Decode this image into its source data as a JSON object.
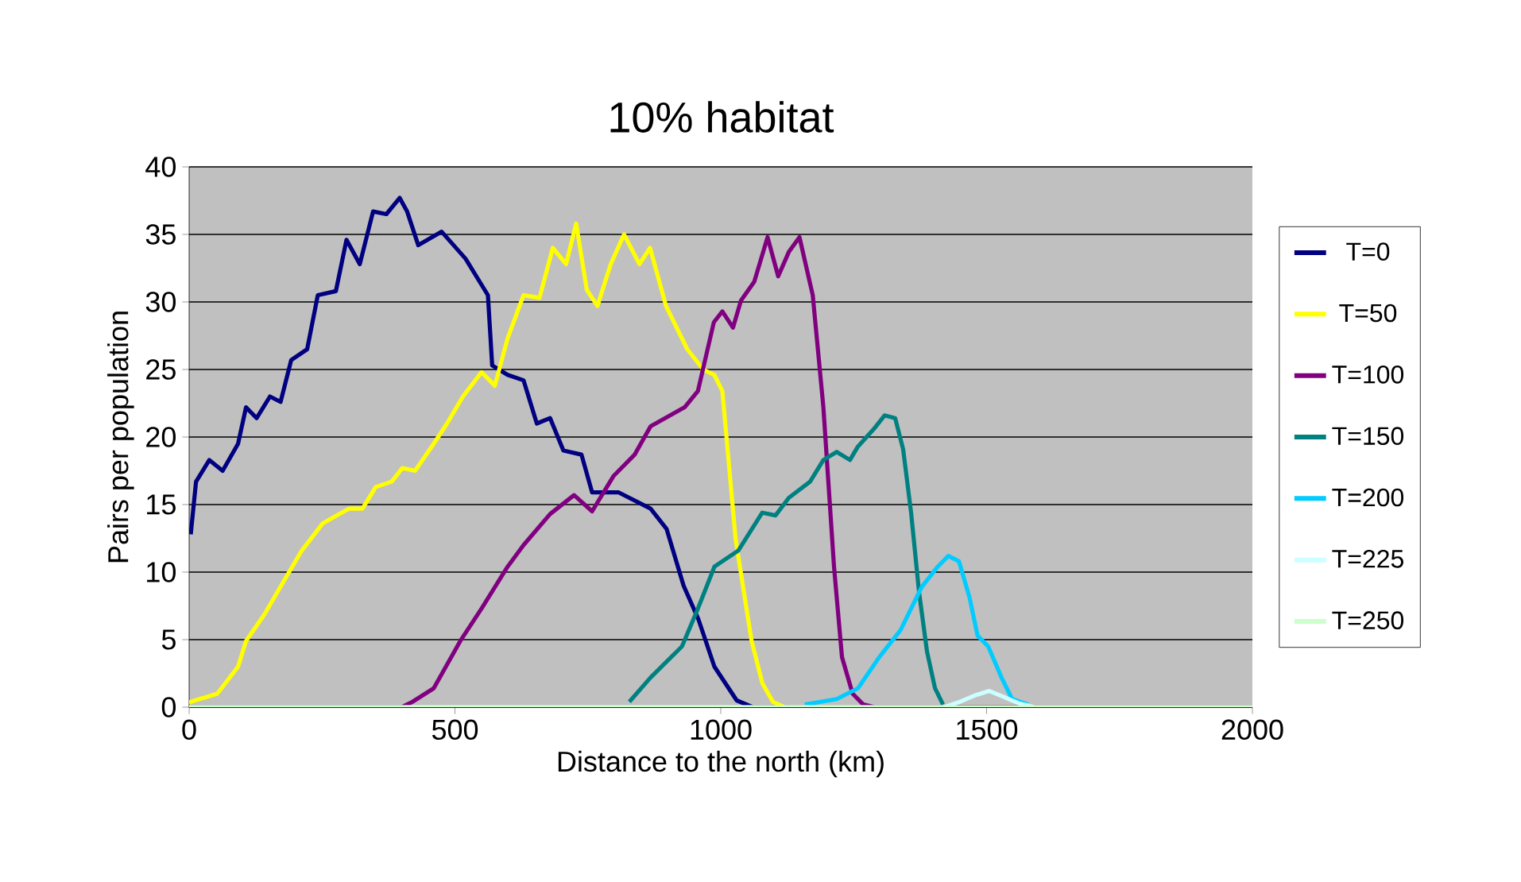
{
  "chart_data": {
    "type": "line",
    "title": "10% habitat",
    "xlabel": "Distance to the north (km)",
    "ylabel": "Pairs per population",
    "xlim": [
      0,
      2000
    ],
    "xticks": [
      0,
      500,
      1000,
      1500,
      2000
    ],
    "ylim": [
      0,
      40
    ],
    "yticks": [
      0,
      5,
      10,
      15,
      20,
      25,
      30,
      35,
      40
    ],
    "grid": "y",
    "legend": "right",
    "marker": "none",
    "line_style": "solid",
    "series": [
      {
        "name": "T=0",
        "color": "#000080",
        "x": [
          3,
          13,
          38,
          63,
          92,
          107,
          127,
          152,
          172,
          192,
          222,
          242,
          276,
          296,
          321,
          346,
          371,
          396,
          410,
          431,
          475,
          520,
          562,
          570,
          599,
          629,
          654,
          679,
          704,
          738,
          758,
          808,
          868,
          898,
          930,
          958,
          988,
          1030,
          1060,
          2000
        ],
        "values": [
          12.8,
          16.7,
          18.3,
          17.5,
          19.5,
          22.2,
          21.4,
          23,
          22.6,
          25.7,
          26.5,
          30.5,
          30.8,
          34.6,
          32.8,
          36.7,
          36.5,
          37.7,
          36.7,
          34.2,
          35.2,
          33.2,
          30.5,
          25.3,
          24.6,
          24.2,
          21,
          21.4,
          19,
          18.7,
          15.9,
          15.9,
          14.7,
          13.2,
          9,
          6.5,
          3,
          0.5,
          0,
          0
        ]
      },
      {
        "name": "T=50",
        "color": "#ffff00",
        "x": [
          0,
          3,
          53,
          92,
          107,
          142,
          182,
          212,
          251,
          301,
          326,
          351,
          381,
          401,
          425,
          460,
          485,
          515,
          550,
          575,
          599,
          629,
          659,
          684,
          709,
          728,
          748,
          768,
          793,
          818,
          847,
          867,
          897,
          937,
          967,
          988,
          1003,
          1028,
          1058,
          1078,
          1098,
          1120,
          2000
        ],
        "values": [
          0.3,
          0.4,
          1,
          3,
          4.9,
          6.9,
          9.6,
          11.6,
          13.6,
          14.7,
          14.7,
          16.3,
          16.7,
          17.7,
          17.5,
          19.5,
          21,
          23,
          24.8,
          23.8,
          27.3,
          30.5,
          30.3,
          34,
          32.8,
          35.8,
          30.9,
          29.7,
          32.8,
          35,
          32.8,
          34,
          29.7,
          26.5,
          25,
          24.6,
          23.4,
          12.4,
          4.9,
          1.8,
          0.4,
          0,
          0
        ]
      },
      {
        "name": "T=100",
        "color": "#800080",
        "x": [
          0,
          400,
          420,
          460,
          510,
          550,
          599,
          629,
          679,
          724,
          758,
          798,
          838,
          868,
          932,
          957,
          987,
          1003,
          1023,
          1038,
          1063,
          1088,
          1108,
          1128,
          1148,
          1173,
          1193,
          1213,
          1228,
          1248,
          1268,
          1290,
          2000
        ],
        "values": [
          0,
          0,
          0.4,
          1.4,
          4.9,
          7.3,
          10.4,
          12,
          14.3,
          15.7,
          14.5,
          17.1,
          18.7,
          20.8,
          22.2,
          23.4,
          28.5,
          29.3,
          28.1,
          30.1,
          31.5,
          34.8,
          31.9,
          33.7,
          34.8,
          30.5,
          22.2,
          10.4,
          3.7,
          1,
          0.2,
          0,
          0
        ]
      },
      {
        "name": "T=150",
        "color": "#008080",
        "x": [
          828,
          868,
          927,
          957,
          988,
          1033,
          1078,
          1103,
          1128,
          1168,
          1193,
          1218,
          1243,
          1258,
          1288,
          1308,
          1328,
          1343,
          1358,
          1373,
          1388,
          1403,
          1418
        ],
        "values": [
          0.4,
          2.2,
          4.5,
          7.3,
          10.4,
          11.6,
          14.4,
          14.2,
          15.5,
          16.7,
          18.3,
          18.9,
          18.3,
          19.3,
          20.6,
          21.6,
          21.4,
          19.1,
          14.4,
          8.5,
          4.1,
          1.4,
          0.2
        ]
      },
      {
        "name": "T=200",
        "color": "#00ccff",
        "x": [
          1158,
          1218,
          1258,
          1298,
          1338,
          1378,
          1408,
          1428,
          1448,
          1468,
          1483,
          1503,
          1528,
          1548,
          1578
        ],
        "values": [
          0.2,
          0.6,
          1.4,
          3.7,
          5.7,
          8.9,
          10.4,
          11.2,
          10.8,
          8.1,
          5.3,
          4.5,
          2.2,
          0.6,
          0.2
        ]
      },
      {
        "name": "T=225",
        "color": "#ccffff",
        "x": [
          0,
          1420,
          1450,
          1480,
          1505,
          1530,
          1560,
          1590,
          2000
        ],
        "values": [
          0,
          0,
          0.4,
          0.9,
          1.2,
          0.8,
          0.3,
          0,
          0
        ]
      },
      {
        "name": "T=250",
        "color": "#ccffcc",
        "x": [
          0,
          2000
        ],
        "values": [
          0,
          0
        ]
      }
    ]
  }
}
